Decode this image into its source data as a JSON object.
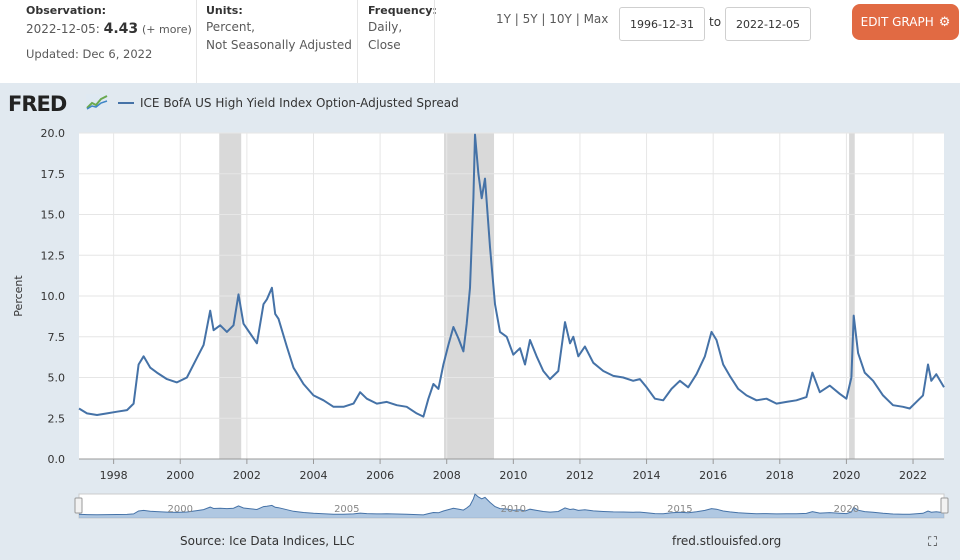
{
  "header": {
    "observation_label": "Observation:",
    "observation_date": "2022-12-05:",
    "observation_value": "4.43",
    "observation_more": "(+ more)",
    "updated": "Updated: Dec 6, 2022",
    "units_label": "Units:",
    "units_line1": "Percent,",
    "units_line2": "Not Seasonally Adjusted",
    "frequency_label": "Frequency:",
    "frequency_line1": "Daily,",
    "frequency_line2": "Close",
    "ranges": [
      "1Y",
      "5Y",
      "10Y",
      "Max"
    ],
    "date_from": "1996-12-31",
    "to_label": "to",
    "date_to": "2022-12-05",
    "edit_button": "EDIT GRAPH"
  },
  "logo": "FRED",
  "footer": {
    "source": "Source: Ice Data Indices, LLC",
    "site": "fred.stlouisfed.org"
  },
  "colors": {
    "line": "#4572a7",
    "recession": "#d9d9d9",
    "panel_bg": "#e1e9f0",
    "edit_button": "#e16a43"
  },
  "chart_data": {
    "type": "line",
    "title": "",
    "xlabel": "",
    "ylabel": "Percent",
    "ylim": [
      0,
      20
    ],
    "xlim": [
      1996.96,
      2022.93
    ],
    "yticks": [
      0.0,
      2.5,
      5.0,
      7.5,
      10.0,
      12.5,
      15.0,
      17.5,
      20.0
    ],
    "xticks": [
      1998,
      2000,
      2002,
      2004,
      2006,
      2008,
      2010,
      2012,
      2014,
      2016,
      2018,
      2020,
      2022
    ],
    "navigator_ticks": [
      2000,
      2005,
      2010,
      2015,
      2020
    ],
    "recessions": [
      [
        2001.17,
        2001.83
      ],
      [
        2007.92,
        2009.42
      ],
      [
        2020.08,
        2020.25
      ]
    ],
    "series": [
      {
        "name": "ICE BofA US High Yield Index Option-Adjusted Spread",
        "x": [
          1996.96,
          1997.2,
          1997.5,
          1997.8,
          1998.1,
          1998.4,
          1998.6,
          1998.75,
          1998.9,
          1999.1,
          1999.3,
          1999.6,
          1999.9,
          2000.2,
          2000.5,
          2000.7,
          2000.9,
          2001.0,
          2001.2,
          2001.4,
          2001.6,
          2001.75,
          2001.9,
          2002.1,
          2002.3,
          2002.5,
          2002.6,
          2002.75,
          2002.85,
          2002.95,
          2003.2,
          2003.4,
          2003.7,
          2004.0,
          2004.3,
          2004.6,
          2004.9,
          2005.2,
          2005.4,
          2005.6,
          2005.9,
          2006.2,
          2006.5,
          2006.8,
          2007.1,
          2007.3,
          2007.45,
          2007.6,
          2007.75,
          2007.9,
          2008.05,
          2008.2,
          2008.35,
          2008.5,
          2008.6,
          2008.7,
          2008.8,
          2008.85,
          2008.95,
          2009.05,
          2009.15,
          2009.3,
          2009.45,
          2009.6,
          2009.8,
          2010.0,
          2010.2,
          2010.35,
          2010.5,
          2010.7,
          2010.9,
          2011.1,
          2011.35,
          2011.55,
          2011.7,
          2011.8,
          2011.95,
          2012.15,
          2012.4,
          2012.7,
          2013.0,
          2013.3,
          2013.6,
          2013.8,
          2014.0,
          2014.25,
          2014.5,
          2014.75,
          2015.0,
          2015.25,
          2015.5,
          2015.75,
          2015.95,
          2016.1,
          2016.3,
          2016.5,
          2016.75,
          2017.0,
          2017.3,
          2017.6,
          2017.9,
          2018.2,
          2018.5,
          2018.8,
          2018.98,
          2019.2,
          2019.5,
          2019.8,
          2020.0,
          2020.15,
          2020.22,
          2020.35,
          2020.55,
          2020.8,
          2021.1,
          2021.4,
          2021.7,
          2021.9,
          2022.1,
          2022.3,
          2022.45,
          2022.55,
          2022.7,
          2022.93
        ],
        "y": [
          3.1,
          2.8,
          2.7,
          2.8,
          2.9,
          3.0,
          3.4,
          5.8,
          6.3,
          5.6,
          5.3,
          4.9,
          4.7,
          5.0,
          6.2,
          7.0,
          9.1,
          7.9,
          8.2,
          7.8,
          8.2,
          10.1,
          8.3,
          7.7,
          7.1,
          9.5,
          9.8,
          10.5,
          8.9,
          8.6,
          6.9,
          5.6,
          4.6,
          3.9,
          3.6,
          3.2,
          3.2,
          3.4,
          4.1,
          3.7,
          3.4,
          3.5,
          3.3,
          3.2,
          2.8,
          2.6,
          3.7,
          4.6,
          4.3,
          5.8,
          7.0,
          8.1,
          7.4,
          6.6,
          8.3,
          10.5,
          16.0,
          19.9,
          17.5,
          16.0,
          17.2,
          13.0,
          9.5,
          7.8,
          7.5,
          6.4,
          6.8,
          5.8,
          7.3,
          6.3,
          5.4,
          4.9,
          5.4,
          8.4,
          7.1,
          7.5,
          6.3,
          6.9,
          5.9,
          5.4,
          5.1,
          5.0,
          4.8,
          4.9,
          4.4,
          3.7,
          3.6,
          4.3,
          4.8,
          4.4,
          5.2,
          6.3,
          7.8,
          7.3,
          5.8,
          5.1,
          4.3,
          3.9,
          3.6,
          3.7,
          3.4,
          3.5,
          3.6,
          3.8,
          5.3,
          4.1,
          4.5,
          4.0,
          3.7,
          5.0,
          8.8,
          6.5,
          5.3,
          4.8,
          3.9,
          3.3,
          3.2,
          3.1,
          3.5,
          3.9,
          5.8,
          4.8,
          5.2,
          4.4
        ]
      }
    ]
  }
}
